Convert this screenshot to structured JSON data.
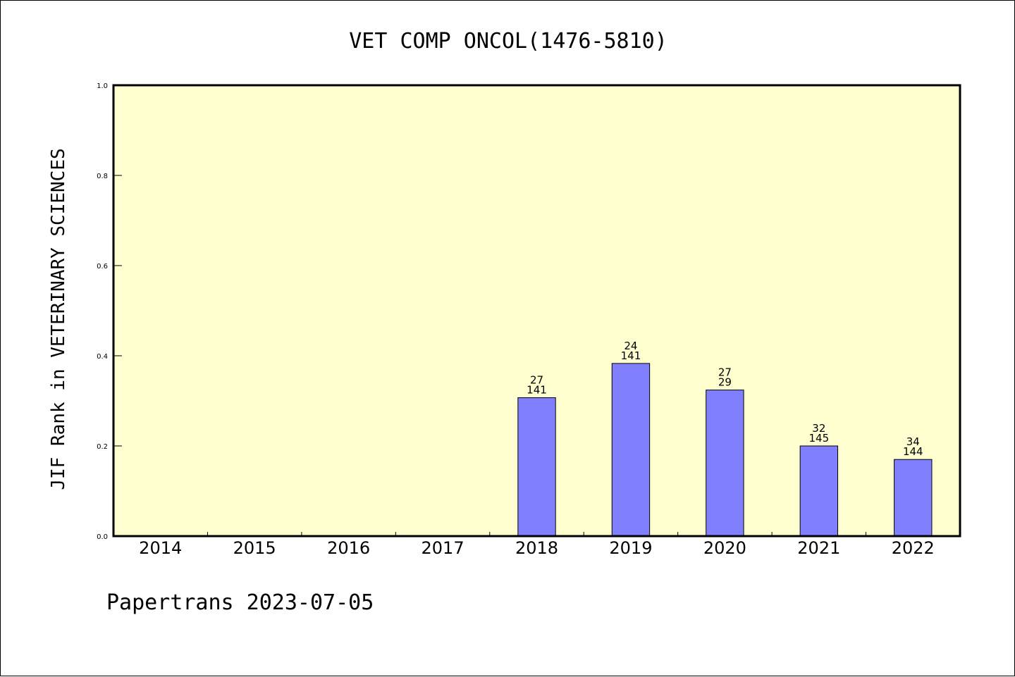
{
  "chart_data": {
    "type": "bar",
    "title": "VET COMP ONCOL(1476-5810)",
    "ylabel": "JIF Rank in VETERINARY SCIENCES",
    "xlabel": "",
    "categories": [
      "2014",
      "2015",
      "2016",
      "2017",
      "2018",
      "2019",
      "2020",
      "2021",
      "2022"
    ],
    "values": [
      null,
      null,
      null,
      null,
      0.307,
      0.383,
      0.324,
      0.2,
      0.17
    ],
    "bar_labels": [
      null,
      null,
      null,
      null,
      [
        "27",
        "141"
      ],
      [
        "24",
        "141"
      ],
      [
        "27",
        "29"
      ],
      [
        "32",
        "145"
      ],
      [
        "34",
        "144"
      ]
    ],
    "ylim": [
      0,
      1.0
    ],
    "yticks": [
      "0.0",
      "0.2",
      "0.4",
      "0.6",
      "0.8",
      "1.0"
    ],
    "grid": false,
    "plot_background": "#ffffd0",
    "bar_color": "#8080ff"
  },
  "footer": "Papertrans 2023-07-05"
}
